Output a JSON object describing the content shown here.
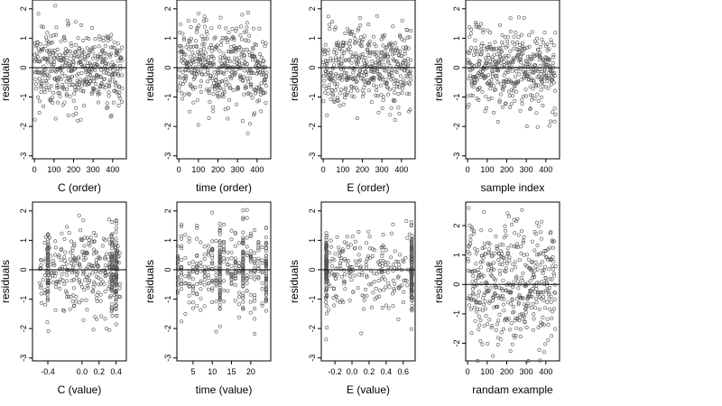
{
  "chart_data": [
    {
      "type": "scatter",
      "xlabel": "C (order)",
      "ylabel": "residuals",
      "xlim": [
        -10,
        470
      ],
      "ylim": [
        -3.1,
        2.3
      ],
      "xticks": [
        0,
        100,
        200,
        300,
        400
      ],
      "yticks": [
        -3,
        -2,
        -1,
        0,
        1,
        2
      ],
      "reference_line_y": 0,
      "point_count": 450,
      "x_design": {
        "kind": "index",
        "n": 450
      },
      "y_distribution": {
        "mean": 0.0,
        "sd": 0.7,
        "min": -2.8,
        "max": 2.2
      }
    },
    {
      "type": "scatter",
      "xlabel": "time (order)",
      "ylabel": "residuals",
      "xlim": [
        -10,
        470
      ],
      "ylim": [
        -3.1,
        2.3
      ],
      "xticks": [
        0,
        100,
        200,
        300,
        400
      ],
      "yticks": [
        -3,
        -2,
        -1,
        0,
        1,
        2
      ],
      "reference_line_y": 0,
      "point_count": 450,
      "x_design": {
        "kind": "index",
        "n": 450
      },
      "y_distribution": {
        "mean": 0.0,
        "sd": 0.7,
        "min": -2.8,
        "max": 2.2
      }
    },
    {
      "type": "scatter",
      "xlabel": "E (order)",
      "ylabel": "residuals",
      "xlim": [
        -10,
        470
      ],
      "ylim": [
        -3.1,
        2.3
      ],
      "xticks": [
        0,
        100,
        200,
        300,
        400
      ],
      "yticks": [
        -3,
        -2,
        -1,
        0,
        1,
        2
      ],
      "reference_line_y": 0,
      "point_count": 450,
      "x_design": {
        "kind": "index",
        "n": 450
      },
      "y_distribution": {
        "mean": 0.0,
        "sd": 0.7,
        "min": -2.8,
        "max": 2.2
      }
    },
    {
      "type": "scatter",
      "xlabel": "sample index",
      "ylabel": "residuals",
      "xlim": [
        -10,
        470
      ],
      "ylim": [
        -3.1,
        2.3
      ],
      "xticks": [
        0,
        100,
        200,
        300,
        400
      ],
      "yticks": [
        -3,
        -2,
        -1,
        0,
        1,
        2
      ],
      "reference_line_y": 0,
      "point_count": 450,
      "x_design": {
        "kind": "index",
        "n": 450
      },
      "y_distribution": {
        "mean": 0.0,
        "sd": 0.7,
        "min": -2.8,
        "max": 2.2
      }
    },
    {
      "type": "scatter",
      "xlabel": "C (value)",
      "ylabel": "residuals",
      "xlim": [
        -0.58,
        0.52
      ],
      "ylim": [
        -3.1,
        2.3
      ],
      "xticks": [
        -0.4,
        0.0,
        0.2,
        0.4
      ],
      "xticklabels": [
        "-0.4",
        "0.0",
        "0.2",
        "0.4"
      ],
      "yticks": [
        -3,
        -2,
        -1,
        0,
        1,
        2
      ],
      "reference_line_y": 0,
      "point_count": 450,
      "x_design": {
        "kind": "uniform-with-dense-columns",
        "range": [
          -0.5,
          0.45
        ],
        "dense": [
          -0.4,
          0.35,
          0.4
        ],
        "dense_fraction": 0.4
      },
      "y_distribution": {
        "mean": 0.0,
        "sd": 0.7,
        "min": -2.8,
        "max": 2.2
      }
    },
    {
      "type": "scatter",
      "xlabel": "time (value)",
      "ylabel": "residuals",
      "xlim": [
        0.8,
        25.2
      ],
      "ylim": [
        -3.1,
        2.3
      ],
      "xticks": [
        5,
        10,
        15,
        20
      ],
      "yticks": [
        -3,
        -2,
        -1,
        0,
        1,
        2
      ],
      "reference_line_y": 0,
      "point_count": 450,
      "x_design": {
        "kind": "integer-columns",
        "range": [
          1,
          24
        ],
        "heavy": [
          12,
          18,
          24
        ]
      },
      "y_distribution": {
        "mean": 0.0,
        "sd": 0.7,
        "min": -2.8,
        "max": 2.2
      }
    },
    {
      "type": "scatter",
      "xlabel": "E (value)",
      "ylabel": "residuals",
      "xlim": [
        -0.36,
        0.74
      ],
      "ylim": [
        -3.1,
        2.3
      ],
      "xticks": [
        -0.2,
        0.0,
        0.2,
        0.4,
        0.6
      ],
      "xticklabels": [
        "-0.2",
        "0.0",
        "0.2",
        "0.4",
        "0.6"
      ],
      "yticks": [
        -3,
        -2,
        -1,
        0,
        1,
        2
      ],
      "reference_line_y": 0,
      "point_count": 450,
      "x_design": {
        "kind": "uniform-with-dense-columns",
        "range": [
          -0.3,
          0.7
        ],
        "dense": [
          -0.3,
          0.7
        ],
        "dense_fraction": 0.55
      },
      "y_distribution": {
        "mean": 0.0,
        "sd": 0.7,
        "min": -2.8,
        "max": 2.2
      }
    },
    {
      "type": "scatter",
      "xlabel": "randam example",
      "ylabel": "residuals",
      "xlim": [
        -10,
        470
      ],
      "ylim": [
        -2.6,
        2.8
      ],
      "xticks": [
        0,
        100,
        200,
        300,
        400
      ],
      "yticks": [
        -2,
        -1,
        0,
        1,
        2
      ],
      "reference_line_y": 0,
      "point_count": 450,
      "x_design": {
        "kind": "index",
        "n": 450
      },
      "y_distribution": {
        "mean": 0.0,
        "sd": 1.0,
        "min": -2.6,
        "max": 2.6
      }
    }
  ]
}
